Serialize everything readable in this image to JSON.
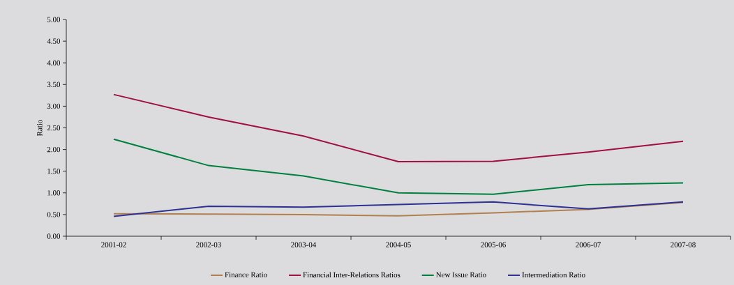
{
  "chart_data": {
    "type": "line",
    "ylabel": "Ratio",
    "categories": [
      "2001-02",
      "2002-03",
      "2003-04",
      "2004-05",
      "2005-06",
      "2006-07",
      "2007-08"
    ],
    "series": [
      {
        "name": "Finance Ratio",
        "color": "#b08050",
        "values": [
          0.52,
          0.51,
          0.5,
          0.47,
          0.54,
          0.62,
          0.78
        ]
      },
      {
        "name": "Financial Inter-Relations Ratios",
        "color": "#a0103f",
        "values": [
          3.27,
          2.75,
          2.31,
          1.72,
          1.73,
          1.94,
          2.19
        ]
      },
      {
        "name": "New Issue Ratio",
        "color": "#00803f",
        "values": [
          2.24,
          1.63,
          1.39,
          1.0,
          0.97,
          1.19,
          1.23
        ]
      },
      {
        "name": "Intermediation Ratio",
        "color": "#2e3192",
        "values": [
          0.46,
          0.69,
          0.67,
          0.73,
          0.79,
          0.63,
          0.79
        ]
      }
    ],
    "ylim": [
      0,
      5
    ],
    "yticks": [
      {
        "value": 0,
        "label": "0.00"
      },
      {
        "value": 0.5,
        "label": "0.50"
      },
      {
        "value": 1,
        "label": "1.00"
      },
      {
        "value": 1.5,
        "label": "1.50"
      },
      {
        "value": 2,
        "label": "2.00"
      },
      {
        "value": 2.5,
        "label": "2.50"
      },
      {
        "value": 3,
        "label": "3.00"
      },
      {
        "value": 3.5,
        "label": "3.50"
      },
      {
        "value": 4,
        "label": "4.00"
      },
      {
        "value": 4.5,
        "label": "4.50"
      },
      {
        "value": 5,
        "label": "5.00"
      }
    ],
    "legend": "bottom",
    "grid": false,
    "marker": "none",
    "line_style": "solid"
  }
}
